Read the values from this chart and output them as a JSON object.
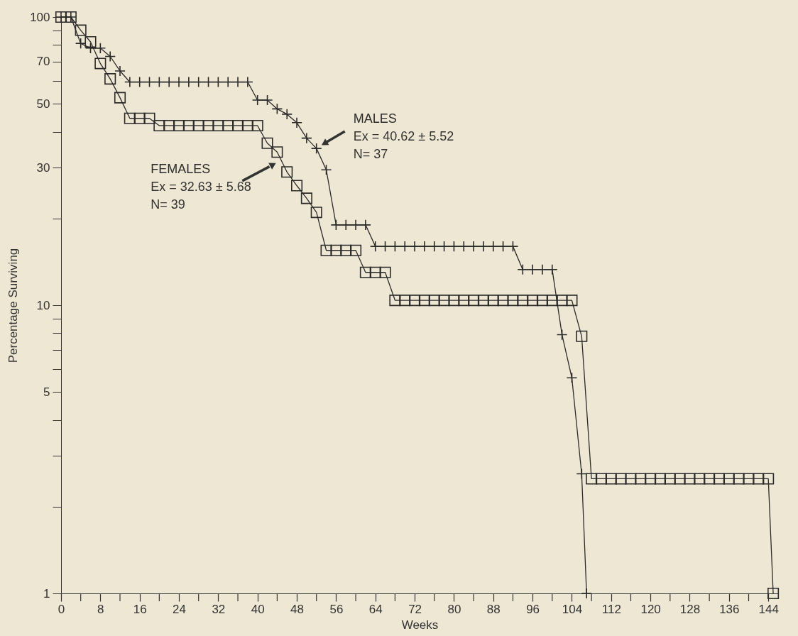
{
  "chart_data": {
    "type": "line",
    "xlabel": "Weeks",
    "ylabel": "Percentage Surviving",
    "series": [
      {
        "name": "MALES",
        "color": "#2b2b2b",
        "marker": "cross",
        "x": [
          0,
          2,
          4,
          6,
          8,
          10,
          12,
          14,
          16,
          18,
          20,
          22,
          24,
          26,
          28,
          30,
          32,
          34,
          36,
          38,
          40,
          42,
          44,
          46,
          48,
          50,
          52,
          54,
          56,
          58,
          60,
          62,
          64,
          66,
          68,
          70,
          72,
          74,
          76,
          78,
          80,
          82,
          84,
          86,
          88,
          90,
          92,
          94,
          96,
          98,
          100,
          102,
          104,
          106,
          107
        ],
        "values": [
          100,
          100,
          81,
          78,
          78,
          73,
          65,
          59.5,
          59.5,
          59.5,
          59.5,
          59.5,
          59.5,
          59.5,
          59.5,
          59.5,
          59.5,
          59.5,
          59.5,
          59.5,
          51.5,
          51.5,
          48,
          46,
          43,
          38,
          35,
          29.5,
          19,
          19,
          19,
          19,
          16,
          16,
          16,
          16,
          16,
          16,
          16,
          16,
          16,
          16,
          16,
          16,
          16,
          16,
          16,
          13.3,
          13.3,
          13.3,
          13.3,
          7.9,
          5.6,
          2.6,
          1
        ]
      },
      {
        "name": "FEMALES",
        "color": "#2b2b2b",
        "marker": "square",
        "x": [
          0,
          2,
          4,
          6,
          8,
          10,
          12,
          14,
          16,
          18,
          20,
          22,
          24,
          26,
          28,
          30,
          32,
          34,
          36,
          38,
          40,
          42,
          44,
          46,
          48,
          50,
          52,
          54,
          56,
          58,
          60,
          62,
          64,
          66,
          68,
          70,
          72,
          74,
          76,
          78,
          80,
          82,
          84,
          86,
          88,
          90,
          92,
          94,
          96,
          98,
          100,
          102,
          104,
          106,
          108,
          110,
          112,
          114,
          116,
          118,
          120,
          122,
          124,
          126,
          128,
          130,
          132,
          134,
          136,
          138,
          140,
          142,
          144,
          145
        ],
        "values": [
          100,
          100,
          90,
          82,
          69,
          61,
          52.5,
          44.5,
          44.5,
          44.5,
          42,
          42,
          42,
          42,
          42,
          42,
          42,
          42,
          42,
          42,
          42,
          36.5,
          34,
          29,
          26,
          23.5,
          21,
          15.5,
          15.5,
          15.5,
          15.5,
          13,
          13,
          13,
          10.4,
          10.4,
          10.4,
          10.4,
          10.4,
          10.4,
          10.4,
          10.4,
          10.4,
          10.4,
          10.4,
          10.4,
          10.4,
          10.4,
          10.4,
          10.4,
          10.4,
          10.4,
          10.4,
          7.8,
          2.5,
          2.5,
          2.5,
          2.5,
          2.5,
          2.5,
          2.5,
          2.5,
          2.5,
          2.5,
          2.5,
          2.5,
          2.5,
          2.5,
          2.5,
          2.5,
          2.5,
          2.5,
          2.5,
          1
        ]
      }
    ],
    "annotations": [
      {
        "text": "Ex = 40.62 ± 5.52",
        "x": 52,
        "y": 35
      },
      "N= 37",
      {
        "text": "Ex = 32.63 ± 5.68",
        "x": 45,
        "y": 32
      },
      "N= 39"
    ],
    "log": "y",
    "xlim": [
      0,
      146
    ],
    "xticks": [
      0,
      {
        "value": 4,
        "label": null
      },
      8,
      {
        "value": 12,
        "label": null
      },
      16,
      {
        "value": 20,
        "label": null
      },
      24,
      {
        "value": 28,
        "label": null
      },
      32,
      {
        "value": 36,
        "label": null
      },
      40,
      {
        "value": 44,
        "label": null
      },
      48,
      {
        "value": 52,
        "label": null
      },
      56,
      {
        "value": 60,
        "label": null
      },
      64,
      {
        "value": 68,
        "label": null
      },
      72,
      {
        "value": 76,
        "label": null
      },
      80,
      {
        "value": 84,
        "label": null
      },
      88,
      {
        "value": 92,
        "label": null
      },
      96,
      {
        "value": 100,
        "label": null
      },
      104,
      {
        "value": 108,
        "label": null
      },
      112,
      {
        "value": 116,
        "label": null
      },
      120,
      {
        "value": 124,
        "label": null
      },
      128,
      {
        "value": 132,
        "label": null
      },
      136,
      {
        "value": 140,
        "label": null
      },
      144
    ],
    "ylim": [
      1,
      100
    ],
    "yticks": [
      1,
      {
        "value": 2,
        "label": null
      },
      {
        "value": 3,
        "label": null
      },
      {
        "value": 4,
        "label": null
      },
      5,
      {
        "value": 6,
        "label": null
      },
      {
        "value": 7,
        "label": null
      },
      {
        "value": 8,
        "label": null
      },
      {
        "value": 9,
        "label": null
      },
      10,
      {
        "value": 20,
        "label": null
      },
      30,
      {
        "value": 40,
        "label": null
      },
      50,
      {
        "value": 60,
        "label": null
      },
      70,
      {
        "value": 80,
        "label": null
      },
      {
        "value": 90,
        "label": null
      },
      100
    ],
    "grid": false
  }
}
